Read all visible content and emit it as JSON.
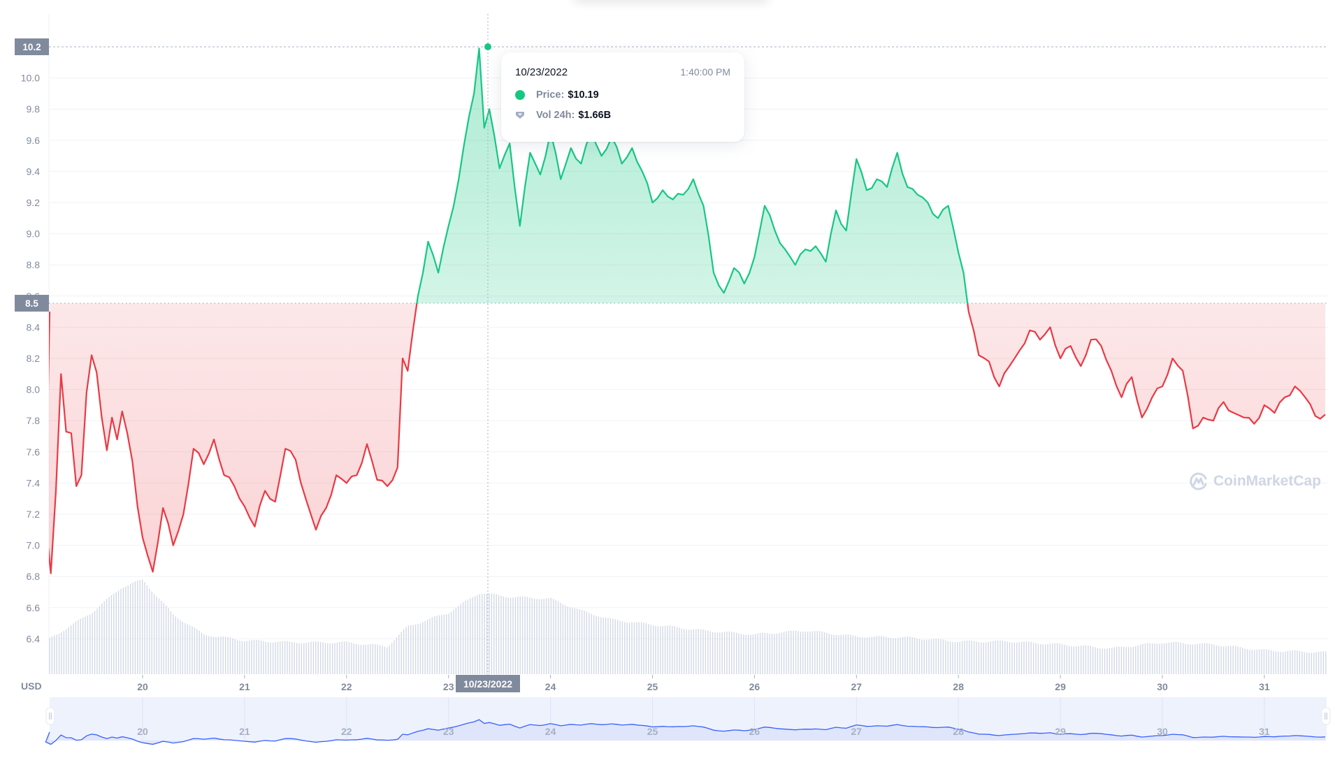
{
  "chart_data": {
    "type": "line",
    "title": "",
    "xlabel": "",
    "ylabel": "USD",
    "currency_label": "USD",
    "ylim": [
      6.2,
      10.3
    ],
    "y_ticks": [
      "10.0",
      "9.8",
      "9.6",
      "9.4",
      "9.2",
      "9.0",
      "8.8",
      "8.6",
      "8.4",
      "8.2",
      "8.0",
      "7.8",
      "7.6",
      "7.4",
      "7.2",
      "7.0",
      "6.8",
      "6.6",
      "6.4"
    ],
    "x_ticks": [
      "20",
      "21",
      "22",
      "23",
      "24",
      "25",
      "26",
      "27",
      "28",
      "29",
      "30",
      "31"
    ],
    "grid": true,
    "legend": [],
    "reference_line": {
      "value": 8.5,
      "label": "8.5"
    },
    "max_marker": {
      "value": 10.2,
      "label": "10.2"
    },
    "series": [
      {
        "name": "Price",
        "color_up": "#16c784",
        "color_down": "#ea3943",
        "x": [
          "19.0",
          "19.05",
          "19.1",
          "19.15",
          "19.2",
          "19.25",
          "19.3",
          "19.35",
          "19.4",
          "19.45",
          "19.5",
          "19.55",
          "19.6",
          "19.65",
          "19.7",
          "19.75",
          "19.8",
          "19.85",
          "19.9",
          "19.95",
          "20.0",
          "20.1",
          "20.2",
          "20.3",
          "20.4",
          "20.5",
          "20.6",
          "20.7",
          "20.8",
          "20.9",
          "21.0",
          "21.1",
          "21.2",
          "21.3",
          "21.4",
          "21.5",
          "21.6",
          "21.7",
          "21.8",
          "21.9",
          "22.0",
          "22.1",
          "22.2",
          "22.3",
          "22.4",
          "22.5",
          "22.55",
          "22.6",
          "22.7",
          "22.8",
          "22.9",
          "23.0",
          "23.1",
          "23.2",
          "23.25",
          "23.3",
          "23.35",
          "23.4",
          "23.5",
          "23.6",
          "23.7",
          "23.8",
          "23.9",
          "24.0",
          "24.1",
          "24.2",
          "24.3",
          "24.4",
          "24.5",
          "24.6",
          "24.7",
          "24.8",
          "24.9",
          "25.0",
          "25.1",
          "25.2",
          "25.3",
          "25.4",
          "25.5",
          "25.6",
          "25.7",
          "25.8",
          "25.9",
          "26.0",
          "26.1",
          "26.2",
          "26.3",
          "26.4",
          "26.5",
          "26.6",
          "26.7",
          "26.8",
          "26.9",
          "27.0",
          "27.1",
          "27.2",
          "27.3",
          "27.4",
          "27.5",
          "27.6",
          "27.7",
          "27.8",
          "27.9",
          "28.0",
          "28.05",
          "28.1",
          "28.2",
          "28.3",
          "28.4",
          "28.5",
          "28.6",
          "28.7",
          "28.8",
          "28.9",
          "29.0",
          "29.1",
          "29.2",
          "29.3",
          "29.4",
          "29.5",
          "29.6",
          "29.7",
          "29.8",
          "29.9",
          "30.0",
          "30.1",
          "30.2",
          "30.3",
          "30.4",
          "30.5",
          "30.6",
          "30.7",
          "30.8",
          "30.9",
          "31.0",
          "31.1",
          "31.2",
          "31.3",
          "31.4",
          "31.5",
          "31.6"
        ],
        "values": [
          8.5,
          7.15,
          6.82,
          7.35,
          8.1,
          7.73,
          7.72,
          7.38,
          7.45,
          7.98,
          8.22,
          8.11,
          7.82,
          7.61,
          7.82,
          7.68,
          7.86,
          7.72,
          7.54,
          7.25,
          7.05,
          6.83,
          7.24,
          7.0,
          7.2,
          7.62,
          7.52,
          7.68,
          7.45,
          7.38,
          7.25,
          7.12,
          7.35,
          7.28,
          7.62,
          7.55,
          7.3,
          7.1,
          7.24,
          7.45,
          7.4,
          7.45,
          7.65,
          7.42,
          7.38,
          7.5,
          8.2,
          8.12,
          8.6,
          8.95,
          8.75,
          9.05,
          9.35,
          9.75,
          9.9,
          10.19,
          9.68,
          9.8,
          9.42,
          9.58,
          9.05,
          9.52,
          9.38,
          9.65,
          9.35,
          9.55,
          9.45,
          9.65,
          9.5,
          9.62,
          9.45,
          9.55,
          9.4,
          9.2,
          9.28,
          9.22,
          9.25,
          9.35,
          9.18,
          8.75,
          8.62,
          8.78,
          8.68,
          8.85,
          9.18,
          9.02,
          8.9,
          8.8,
          8.9,
          8.92,
          8.82,
          9.15,
          9.02,
          9.48,
          9.28,
          9.35,
          9.3,
          9.52,
          9.3,
          9.25,
          9.2,
          9.1,
          9.18,
          8.88,
          8.75,
          8.5,
          8.22,
          8.18,
          8.02,
          8.15,
          8.25,
          8.38,
          8.32,
          8.4,
          8.2,
          8.28,
          8.15,
          8.32,
          8.28,
          8.12,
          7.95,
          8.08,
          7.82,
          7.95,
          8.02,
          8.2,
          8.12,
          7.75,
          7.82,
          7.8,
          7.92,
          7.85,
          7.82,
          7.78,
          7.9,
          7.85,
          7.95,
          8.02,
          7.95,
          7.83,
          7.84
        ]
      },
      {
        "name": "Vol 24h",
        "type": "bar",
        "color": "#cfd6e4",
        "note": "relative volume bar heights (0-100)",
        "x": [
          "19.0",
          "19.5",
          "19.8",
          "20.0",
          "20.3",
          "20.6",
          "21.0",
          "21.5",
          "22.0",
          "22.4",
          "22.6",
          "23.0",
          "23.3",
          "23.6",
          "24.0",
          "24.3",
          "24.6",
          "25.0",
          "25.5",
          "26.0",
          "26.5",
          "27.0",
          "27.5",
          "28.0",
          "28.5",
          "29.0",
          "29.5",
          "30.0",
          "30.5",
          "31.0",
          "31.6"
        ],
        "values": [
          30,
          62,
          88,
          95,
          60,
          40,
          34,
          32,
          32,
          28,
          48,
          62,
          82,
          78,
          76,
          64,
          55,
          50,
          44,
          40,
          44,
          38,
          37,
          33,
          33,
          30,
          26,
          32,
          30,
          24,
          22
        ]
      }
    ]
  },
  "tooltip": {
    "date": "10/23/2022",
    "time": "1:40:00 PM",
    "price_label": "Price:",
    "price_value": "$10.19",
    "volume_label": "Vol 24h:",
    "volume_value": "$1.66B",
    "price_color": "#16c784"
  },
  "crosshair": {
    "x_label": "10/23/2022",
    "y_max_label": "10.2",
    "y_ref_label": "8.5"
  },
  "watermark": {
    "text": "CoinMarketCap"
  },
  "navigator": {
    "x_ticks": [
      "20",
      "21",
      "22",
      "23",
      "24",
      "25",
      "26",
      "27",
      "28",
      "29",
      "30",
      "31"
    ]
  },
  "colors": {
    "up": "#16c784",
    "down": "#ea3943",
    "axis_text": "#808a9d",
    "grid": "#eff2f5",
    "navigator_line": "#3861fb",
    "navigator_fill": "#dfe5fb"
  }
}
